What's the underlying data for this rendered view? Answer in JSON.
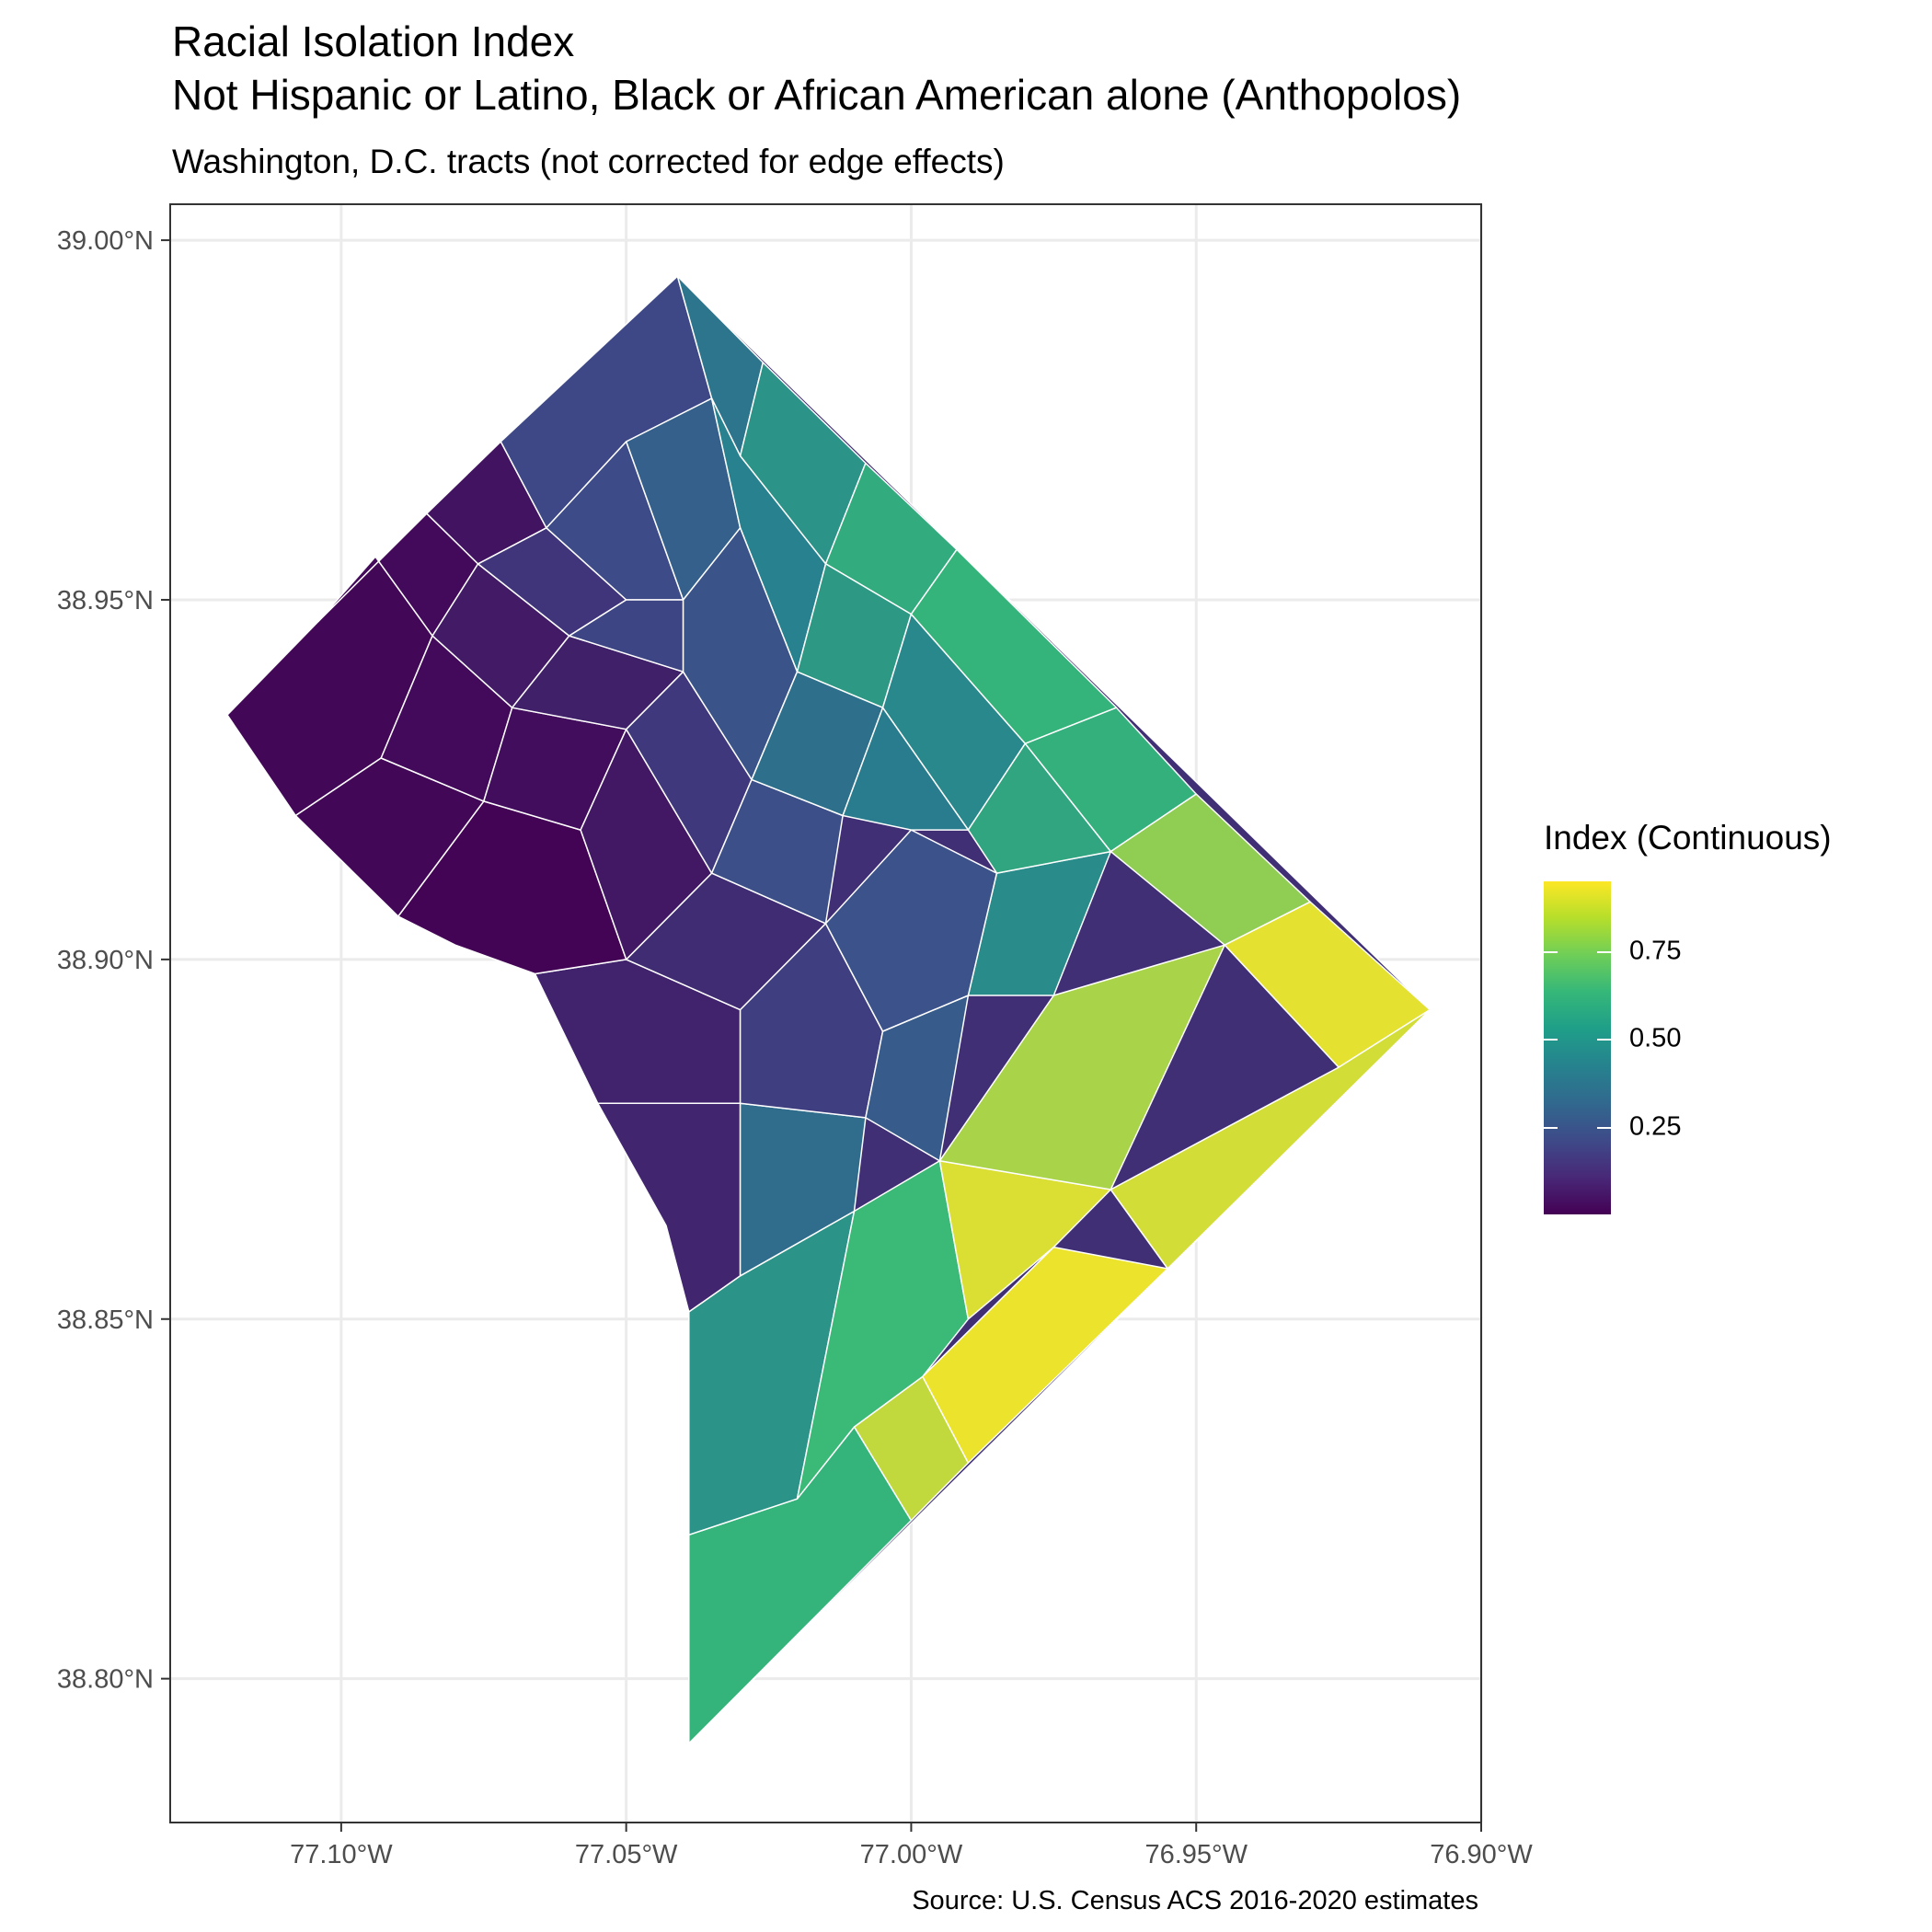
{
  "title": "Racial Isolation Index",
  "subtitle_line2": "Not Hispanic or Latino, Black or African American alone (Anthopolos)",
  "subtitle": "Washington, D.C. tracts (not corrected for edge effects)",
  "caption": "Source: U.S. Census ACS 2016-2020 estimates",
  "chart_data": {
    "type": "map",
    "region": "Washington, D.C. census tracts",
    "grid": true,
    "x_axis": {
      "ticks": [
        {
          "value": -77.1,
          "label": "77.10°W"
        },
        {
          "value": -77.05,
          "label": "77.05°W"
        },
        {
          "value": -77.0,
          "label": "77.00°W"
        },
        {
          "value": -76.95,
          "label": "76.95°W"
        },
        {
          "value": -76.9,
          "label": "76.90°W"
        }
      ],
      "range": [
        -77.13,
        -76.9
      ]
    },
    "y_axis": {
      "ticks": [
        {
          "value": 38.8,
          "label": "38.80°N"
        },
        {
          "value": 38.85,
          "label": "38.85°N"
        },
        {
          "value": 38.9,
          "label": "38.90°N"
        },
        {
          "value": 38.95,
          "label": "38.95°N"
        },
        {
          "value": 39.0,
          "label": "39.00°N"
        }
      ],
      "range": [
        38.78,
        39.005
      ]
    },
    "legend": {
      "title": "Index (Continuous)",
      "placement": "right",
      "range": [
        0.0,
        0.95
      ],
      "ticks": [
        {
          "value": 0.25,
          "label": "0.25"
        },
        {
          "value": 0.5,
          "label": "0.50"
        },
        {
          "value": 0.75,
          "label": "0.75"
        }
      ],
      "palette": [
        "#440154",
        "#3e4a89",
        "#26828e",
        "#35b779",
        "#fde725"
      ]
    },
    "boundary": [
      [
        -77.12,
        38.934
      ],
      [
        -77.041,
        38.995
      ],
      [
        -76.909,
        38.893
      ],
      [
        -77.039,
        38.791
      ],
      [
        -77.039,
        38.851
      ],
      [
        -77.043,
        38.863
      ],
      [
        -77.055,
        38.88
      ],
      [
        -77.066,
        38.898
      ],
      [
        -77.08,
        38.902
      ],
      [
        -77.09,
        38.906
      ],
      [
        -77.108,
        38.92
      ]
    ],
    "tracts": [
      {
        "poly": [
          [
            -77.12,
            38.934
          ],
          [
            -77.104,
            38.947
          ],
          [
            -77.094,
            38.956
          ],
          [
            -77.084,
            38.945
          ],
          [
            -77.093,
            38.928
          ],
          [
            -77.108,
            38.92
          ]
        ],
        "value": 0.02
      },
      {
        "poly": [
          [
            -77.104,
            38.947
          ],
          [
            -77.085,
            38.962
          ],
          [
            -77.076,
            38.955
          ],
          [
            -77.084,
            38.945
          ],
          [
            -77.094,
            38.956
          ]
        ],
        "value": 0.03
      },
      {
        "poly": [
          [
            -77.085,
            38.962
          ],
          [
            -77.072,
            38.972
          ],
          [
            -77.064,
            38.96
          ],
          [
            -77.076,
            38.955
          ]
        ],
        "value": 0.06
      },
      {
        "poly": [
          [
            -77.072,
            38.972
          ],
          [
            -77.041,
            38.995
          ],
          [
            -77.035,
            38.978
          ],
          [
            -77.05,
            38.972
          ],
          [
            -77.064,
            38.96
          ]
        ],
        "value": 0.23
      },
      {
        "poly": [
          [
            -77.041,
            38.995
          ],
          [
            -77.026,
            38.983
          ],
          [
            -77.03,
            38.97
          ],
          [
            -77.035,
            38.978
          ]
        ],
        "value": 0.42
      },
      {
        "poly": [
          [
            -77.026,
            38.983
          ],
          [
            -77.008,
            38.969
          ],
          [
            -77.015,
            38.955
          ],
          [
            -77.03,
            38.97
          ]
        ],
        "value": 0.55
      },
      {
        "poly": [
          [
            -77.008,
            38.969
          ],
          [
            -76.992,
            38.957
          ],
          [
            -77.0,
            38.948
          ],
          [
            -77.015,
            38.955
          ]
        ],
        "value": 0.66
      },
      {
        "poly": [
          [
            -76.992,
            38.957
          ],
          [
            -76.964,
            38.935
          ],
          [
            -76.98,
            38.93
          ],
          [
            -77.0,
            38.948
          ]
        ],
        "value": 0.7
      },
      {
        "poly": [
          [
            -76.964,
            38.935
          ],
          [
            -76.95,
            38.923
          ],
          [
            -76.965,
            38.915
          ],
          [
            -76.98,
            38.93
          ]
        ],
        "value": 0.68
      },
      {
        "poly": [
          [
            -76.95,
            38.923
          ],
          [
            -76.93,
            38.908
          ],
          [
            -76.945,
            38.902
          ],
          [
            -76.965,
            38.915
          ]
        ],
        "value": 0.82
      },
      {
        "poly": [
          [
            -76.93,
            38.908
          ],
          [
            -76.909,
            38.893
          ],
          [
            -76.925,
            38.885
          ],
          [
            -76.945,
            38.902
          ]
        ],
        "value": 0.92
      },
      {
        "poly": [
          [
            -76.925,
            38.885
          ],
          [
            -76.909,
            38.893
          ],
          [
            -76.955,
            38.857
          ],
          [
            -76.965,
            38.868
          ]
        ],
        "value": 0.9
      },
      {
        "poly": [
          [
            -76.955,
            38.857
          ],
          [
            -76.99,
            38.83
          ],
          [
            -76.998,
            38.842
          ],
          [
            -76.975,
            38.86
          ]
        ],
        "value": 0.93
      },
      {
        "poly": [
          [
            -76.99,
            38.83
          ],
          [
            -77.0,
            38.822
          ],
          [
            -77.01,
            38.835
          ],
          [
            -76.998,
            38.842
          ]
        ],
        "value": 0.88
      },
      {
        "poly": [
          [
            -77.0,
            38.822
          ],
          [
            -77.039,
            38.791
          ],
          [
            -77.039,
            38.82
          ],
          [
            -77.02,
            38.825
          ],
          [
            -77.01,
            38.835
          ]
        ],
        "value": 0.7
      },
      {
        "poly": [
          [
            -77.039,
            38.82
          ],
          [
            -77.039,
            38.851
          ],
          [
            -77.03,
            38.856
          ],
          [
            -77.01,
            38.865
          ],
          [
            -77.02,
            38.825
          ]
        ],
        "value": 0.55
      },
      {
        "poly": [
          [
            -77.01,
            38.865
          ],
          [
            -76.995,
            38.872
          ],
          [
            -76.99,
            38.85
          ],
          [
            -76.998,
            38.842
          ],
          [
            -77.01,
            38.835
          ],
          [
            -77.02,
            38.825
          ]
        ],
        "value": 0.72
      },
      {
        "poly": [
          [
            -76.995,
            38.872
          ],
          [
            -76.965,
            38.868
          ],
          [
            -76.975,
            38.86
          ],
          [
            -76.99,
            38.85
          ]
        ],
        "value": 0.91
      },
      {
        "poly": [
          [
            -76.965,
            38.868
          ],
          [
            -76.945,
            38.902
          ],
          [
            -76.975,
            38.895
          ],
          [
            -76.995,
            38.872
          ]
        ],
        "value": 0.85
      },
      {
        "poly": [
          [
            -77.039,
            38.851
          ],
          [
            -77.043,
            38.863
          ],
          [
            -77.055,
            38.88
          ],
          [
            -77.03,
            38.88
          ],
          [
            -77.03,
            38.856
          ]
        ],
        "value": 0.12
      },
      {
        "poly": [
          [
            -77.03,
            38.856
          ],
          [
            -77.03,
            38.88
          ],
          [
            -77.008,
            38.878
          ],
          [
            -77.01,
            38.865
          ]
        ],
        "value": 0.38
      },
      {
        "poly": [
          [
            -77.055,
            38.88
          ],
          [
            -77.066,
            38.898
          ],
          [
            -77.05,
            38.9
          ],
          [
            -77.03,
            38.893
          ],
          [
            -77.03,
            38.88
          ]
        ],
        "value": 0.11
      },
      {
        "poly": [
          [
            -77.03,
            38.893
          ],
          [
            -77.05,
            38.9
          ],
          [
            -77.035,
            38.912
          ],
          [
            -77.015,
            38.905
          ]
        ],
        "value": 0.14
      },
      {
        "poly": [
          [
            -77.03,
            38.88
          ],
          [
            -77.03,
            38.893
          ],
          [
            -77.015,
            38.905
          ],
          [
            -77.005,
            38.89
          ],
          [
            -77.008,
            38.878
          ]
        ],
        "value": 0.2
      },
      {
        "poly": [
          [
            -77.008,
            38.878
          ],
          [
            -77.005,
            38.89
          ],
          [
            -76.99,
            38.895
          ],
          [
            -76.995,
            38.872
          ]
        ],
        "value": 0.31
      },
      {
        "poly": [
          [
            -76.99,
            38.895
          ],
          [
            -76.975,
            38.895
          ],
          [
            -76.965,
            38.915
          ],
          [
            -76.985,
            38.912
          ]
        ],
        "value": 0.52
      },
      {
        "poly": [
          [
            -77.005,
            38.89
          ],
          [
            -77.015,
            38.905
          ],
          [
            -77.0,
            38.918
          ],
          [
            -76.985,
            38.912
          ],
          [
            -76.99,
            38.895
          ]
        ],
        "value": 0.27
      },
      {
        "poly": [
          [
            -77.066,
            38.898
          ],
          [
            -77.08,
            38.902
          ],
          [
            -77.09,
            38.906
          ],
          [
            -77.075,
            38.922
          ],
          [
            -77.058,
            38.918
          ],
          [
            -77.05,
            38.9
          ]
        ],
        "value": 0.01
      },
      {
        "poly": [
          [
            -77.09,
            38.906
          ],
          [
            -77.108,
            38.92
          ],
          [
            -77.093,
            38.928
          ],
          [
            -77.075,
            38.922
          ]
        ],
        "value": 0.02
      },
      {
        "poly": [
          [
            -77.093,
            38.928
          ],
          [
            -77.084,
            38.945
          ],
          [
            -77.07,
            38.935
          ],
          [
            -77.075,
            38.922
          ]
        ],
        "value": 0.03
      },
      {
        "poly": [
          [
            -77.084,
            38.945
          ],
          [
            -77.076,
            38.955
          ],
          [
            -77.06,
            38.945
          ],
          [
            -77.07,
            38.935
          ]
        ],
        "value": 0.08
      },
      {
        "poly": [
          [
            -77.076,
            38.955
          ],
          [
            -77.064,
            38.96
          ],
          [
            -77.05,
            38.95
          ],
          [
            -77.06,
            38.945
          ]
        ],
        "value": 0.17
      },
      {
        "poly": [
          [
            -77.064,
            38.96
          ],
          [
            -77.05,
            38.972
          ],
          [
            -77.04,
            38.95
          ],
          [
            -77.05,
            38.95
          ]
        ],
        "value": 0.24
      },
      {
        "poly": [
          [
            -77.05,
            38.972
          ],
          [
            -77.035,
            38.978
          ],
          [
            -77.03,
            38.96
          ],
          [
            -77.04,
            38.95
          ]
        ],
        "value": 0.33
      },
      {
        "poly": [
          [
            -77.035,
            38.978
          ],
          [
            -77.03,
            38.97
          ],
          [
            -77.015,
            38.955
          ],
          [
            -77.02,
            38.94
          ],
          [
            -77.03,
            38.96
          ]
        ],
        "value": 0.47
      },
      {
        "poly": [
          [
            -77.015,
            38.955
          ],
          [
            -77.0,
            38.948
          ],
          [
            -77.005,
            38.935
          ],
          [
            -77.02,
            38.94
          ]
        ],
        "value": 0.58
      },
      {
        "poly": [
          [
            -77.0,
            38.948
          ],
          [
            -76.98,
            38.93
          ],
          [
            -76.99,
            38.918
          ],
          [
            -77.005,
            38.935
          ]
        ],
        "value": 0.5
      },
      {
        "poly": [
          [
            -76.98,
            38.93
          ],
          [
            -76.965,
            38.915
          ],
          [
            -76.985,
            38.912
          ],
          [
            -76.99,
            38.918
          ]
        ],
        "value": 0.63
      },
      {
        "poly": [
          [
            -77.058,
            38.918
          ],
          [
            -77.075,
            38.922
          ],
          [
            -77.07,
            38.935
          ],
          [
            -77.05,
            38.932
          ]
        ],
        "value": 0.04
      },
      {
        "poly": [
          [
            -77.05,
            38.932
          ],
          [
            -77.07,
            38.935
          ],
          [
            -77.06,
            38.945
          ],
          [
            -77.04,
            38.94
          ]
        ],
        "value": 0.1
      },
      {
        "poly": [
          [
            -77.05,
            38.9
          ],
          [
            -77.058,
            38.918
          ],
          [
            -77.05,
            38.932
          ],
          [
            -77.035,
            38.912
          ]
        ],
        "value": 0.07
      },
      {
        "poly": [
          [
            -77.035,
            38.912
          ],
          [
            -77.05,
            38.932
          ],
          [
            -77.04,
            38.94
          ],
          [
            -77.028,
            38.925
          ]
        ],
        "value": 0.18
      },
      {
        "poly": [
          [
            -77.04,
            38.94
          ],
          [
            -77.06,
            38.945
          ],
          [
            -77.05,
            38.95
          ],
          [
            -77.04,
            38.95
          ]
        ],
        "value": 0.22
      },
      {
        "poly": [
          [
            -77.028,
            38.925
          ],
          [
            -77.04,
            38.94
          ],
          [
            -77.04,
            38.95
          ],
          [
            -77.03,
            38.96
          ],
          [
            -77.02,
            38.94
          ]
        ],
        "value": 0.28
      },
      {
        "poly": [
          [
            -77.015,
            38.905
          ],
          [
            -77.035,
            38.912
          ],
          [
            -77.028,
            38.925
          ],
          [
            -77.012,
            38.92
          ]
        ],
        "value": 0.26
      },
      {
        "poly": [
          [
            -77.012,
            38.92
          ],
          [
            -77.028,
            38.925
          ],
          [
            -77.02,
            38.94
          ],
          [
            -77.005,
            38.935
          ]
        ],
        "value": 0.4
      },
      {
        "poly": [
          [
            -77.0,
            38.918
          ],
          [
            -77.012,
            38.92
          ],
          [
            -77.005,
            38.935
          ],
          [
            -76.99,
            38.918
          ]
        ],
        "value": 0.45
      }
    ]
  }
}
